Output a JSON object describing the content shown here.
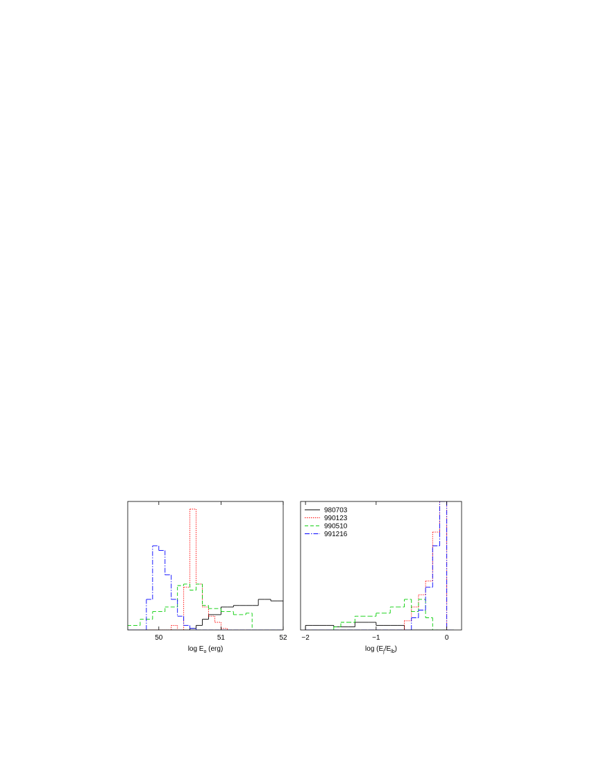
{
  "chart_data": [
    {
      "type": "histogram",
      "xlabel": [
        "log E",
        "o",
        " (erg)"
      ],
      "xlim": [
        49.5,
        52.0
      ],
      "xticks": [
        50,
        51,
        52
      ],
      "ylim": [
        0,
        8.4
      ],
      "bins": [
        49.5,
        49.6,
        49.7,
        49.8,
        49.9,
        50.0,
        50.1,
        50.2,
        50.3,
        50.4,
        50.5,
        50.6,
        50.7,
        50.8,
        50.9,
        51.0,
        51.1,
        51.2,
        51.3,
        51.4,
        51.5,
        51.6,
        51.7,
        51.8,
        51.9,
        52.0
      ],
      "series": [
        {
          "color": "#000000",
          "dash": "solid",
          "values": [
            0,
            0,
            0,
            0,
            0,
            0,
            0,
            0,
            0,
            0,
            0.1,
            0.3,
            0.7,
            1.0,
            1.0,
            1.5,
            1.5,
            1.6,
            1.6,
            1.6,
            1.6,
            2.0,
            2.0,
            1.9,
            1.9
          ]
        },
        {
          "color": "#ff0000",
          "dash": "dotted",
          "values": [
            0,
            0,
            0,
            0,
            0,
            0,
            0,
            0.3,
            0,
            2.8,
            7.9,
            3.0,
            1.5,
            0.9,
            0.5,
            0.1,
            0,
            0,
            0,
            0,
            0,
            0,
            0,
            0,
            0
          ]
        },
        {
          "color": "#00cc00",
          "dash": "dashed",
          "values": [
            0.3,
            0.3,
            0.7,
            0.7,
            1.2,
            1.2,
            1.5,
            1.5,
            2.9,
            3.0,
            2.6,
            3.0,
            1.6,
            1.4,
            1.4,
            1.2,
            1.2,
            1.0,
            1.0,
            1.1,
            0,
            0,
            0,
            0,
            0
          ]
        },
        {
          "color": "#0000ff",
          "dash": "dashdot",
          "values": [
            0,
            0,
            0,
            2.0,
            5.5,
            5.2,
            3.6,
            2.0,
            0.9,
            0.3,
            0.1,
            0,
            0,
            0,
            0,
            0,
            0,
            0,
            0,
            0,
            0,
            0,
            0,
            0,
            0
          ]
        }
      ]
    },
    {
      "type": "histogram",
      "xlabel": [
        "log (E",
        "j",
        "/E",
        "lb",
        ")"
      ],
      "xlim": [
        -2.07,
        0.21
      ],
      "xticks": [
        {
          "value": -2,
          "label": "−2"
        },
        {
          "value": -1,
          "label": "−1"
        },
        0
      ],
      "ylim": [
        0,
        8.4
      ],
      "legend": "upper left",
      "bins": [
        -2.0,
        -1.9,
        -1.8,
        -1.7,
        -1.6,
        -1.5,
        -1.4,
        -1.3,
        -1.2,
        -1.1,
        -1.0,
        -0.9,
        -0.8,
        -0.7,
        -0.6,
        -0.5,
        -0.4,
        -0.3,
        -0.2,
        -0.1,
        0.0,
        0.1
      ],
      "series": [
        {
          "name": "980703",
          "color": "#000000",
          "dash": "solid",
          "values": [
            0.3,
            0.3,
            0.3,
            0.3,
            0.2,
            0.2,
            0.2,
            0.5,
            0.5,
            0.5,
            0.3,
            0.3,
            0.3,
            0.3,
            0,
            0,
            0,
            0,
            0,
            0,
            0
          ]
        },
        {
          "name": "990123",
          "color": "#ff0000",
          "dash": "dotted",
          "values": [
            0,
            0,
            0,
            0,
            0,
            0,
            0,
            0,
            0,
            0,
            0,
            0,
            0,
            0,
            0.6,
            1.5,
            2.3,
            3.2,
            6.4,
            8.4,
            0
          ]
        },
        {
          "name": "990510",
          "color": "#00cc00",
          "dash": "dashed",
          "values": [
            0,
            0,
            0,
            0,
            0.2,
            0.5,
            0.5,
            0.9,
            0.9,
            0.9,
            1.1,
            1.1,
            1.5,
            1.5,
            2.0,
            1.2,
            2.0,
            0.8,
            0,
            0,
            0
          ]
        },
        {
          "name": "991216",
          "color": "#0000ff",
          "dash": "dashdot",
          "values": [
            0,
            0,
            0,
            0,
            0,
            0,
            0,
            0,
            0,
            0,
            0,
            0,
            0,
            0,
            0,
            0.8,
            1.3,
            2.8,
            5.5,
            8.4,
            0
          ]
        }
      ]
    }
  ]
}
